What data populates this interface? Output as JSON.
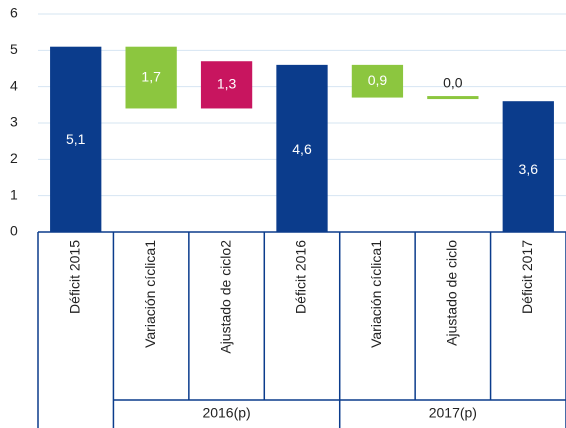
{
  "chart_data": {
    "type": "waterfall",
    "categories": [
      "Déficit 2015",
      "Variación cíclica1",
      "Ajustado de ciclo2",
      "Déficit 2016",
      "Variación cíclica1",
      "Ajustado de ciclo",
      "Déficit 2017"
    ],
    "values": [
      5.1,
      1.7,
      1.3,
      4.6,
      0.9,
      0.0,
      3.6
    ],
    "value_labels": [
      "5,1",
      "1,7",
      "1,3",
      "4,6",
      "0,9",
      "0,0",
      "3,6"
    ],
    "steps": [
      "total",
      "down",
      "up",
      "total",
      "down",
      "up",
      "total"
    ],
    "colors": [
      "#0b3c8c",
      "#8cc63f",
      "#c8155f",
      "#0b3c8c",
      "#8cc63f",
      "#8cc63f",
      "#0b3c8c"
    ],
    "groups": [
      {
        "label": "2016(p)",
        "start": 1,
        "end": 3
      },
      {
        "label": "2017(p)",
        "start": 4,
        "end": 6
      }
    ],
    "ylim": [
      0,
      6
    ],
    "yticks": [
      0,
      1,
      2,
      3,
      4,
      5,
      6
    ],
    "grid": true
  }
}
